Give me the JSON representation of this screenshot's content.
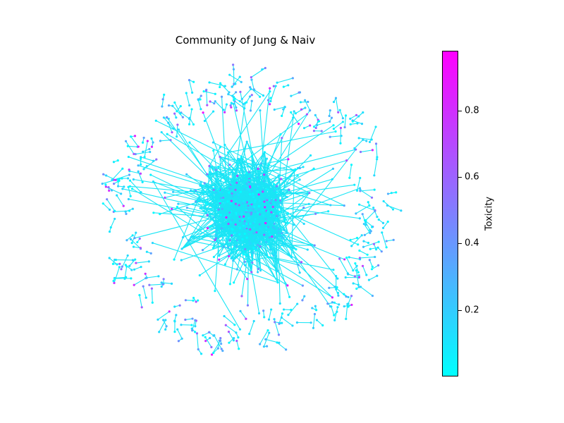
{
  "chart_data": {
    "type": "network",
    "title": "Community of Jung & Naiv",
    "colorbar": {
      "label": "Toxicity",
      "range": [
        0.0,
        0.98
      ],
      "colormap": [
        "#00ffff",
        "#ff00ff"
      ],
      "ticks": [
        {
          "value": 0.2,
          "label": "0.2"
        },
        {
          "value": 0.4,
          "label": "0.4"
        },
        {
          "value": 0.6,
          "label": "0.6"
        },
        {
          "value": 0.8,
          "label": "0.8"
        }
      ]
    },
    "edge_color": "#1ae5f5",
    "node_toxicity_distribution": "mostly low (cyan), with scattered high-toxicity (magenta) nodes"
  }
}
